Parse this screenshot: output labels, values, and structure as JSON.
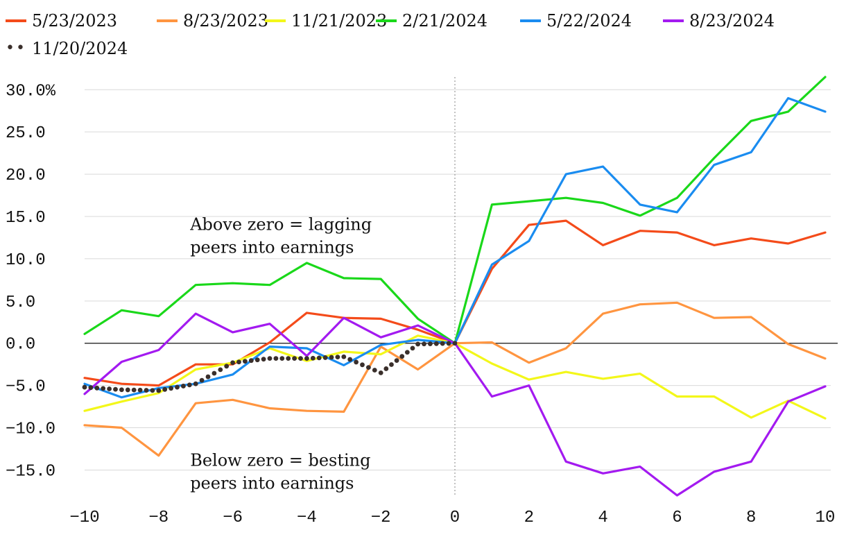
{
  "chart_data": {
    "type": "line",
    "title": "",
    "xlabel": "",
    "ylabel": "",
    "xlim": [
      -10,
      10
    ],
    "ylim": [
      -18,
      31.5
    ],
    "grid": true,
    "legend_position": "top",
    "x_ticks": [
      {
        "value": -10,
        "label": "−10"
      },
      {
        "value": -8,
        "label": "−8"
      },
      {
        "value": -6,
        "label": "−6"
      },
      {
        "value": -4,
        "label": "−4"
      },
      {
        "value": -2,
        "label": "−2"
      },
      {
        "value": 0,
        "label": "0"
      },
      {
        "value": 2,
        "label": "2"
      },
      {
        "value": 4,
        "label": "4"
      },
      {
        "value": 6,
        "label": "6"
      },
      {
        "value": 8,
        "label": "8"
      },
      {
        "value": 10,
        "label": "10"
      }
    ],
    "y_ticks": [
      {
        "value": 30,
        "label": "30.0%"
      },
      {
        "value": 25,
        "label": "25.0"
      },
      {
        "value": 20,
        "label": "20.0"
      },
      {
        "value": 15,
        "label": "15.0"
      },
      {
        "value": 10,
        "label": "10.0"
      },
      {
        "value": 5,
        "label": "5.0"
      },
      {
        "value": 0,
        "label": "0.0"
      },
      {
        "value": -5,
        "label": "−5.0"
      },
      {
        "value": -10,
        "label": "−10.0"
      },
      {
        "value": -15,
        "label": "−15.0"
      }
    ],
    "annotations": [
      {
        "lines": [
          "Above zero = lagging",
          "peers into earnings"
        ],
        "x": -7.15,
        "y": 13.4
      },
      {
        "lines": [
          "Below zero = besting",
          "peers into earnings"
        ],
        "x": -7.15,
        "y": -14.5
      }
    ],
    "x": [
      -10,
      -9,
      -8,
      -7,
      -6,
      -5,
      -4,
      -3,
      -2,
      -1,
      0,
      1,
      2,
      3,
      4,
      5,
      6,
      7,
      8,
      9,
      10
    ],
    "series": [
      {
        "name": "5/23/2023",
        "color": "#f44b1a",
        "style": "solid",
        "values": [
          -4.1,
          -4.8,
          -5.0,
          -2.5,
          -2.5,
          0.1,
          3.6,
          3.0,
          2.9,
          1.6,
          0,
          8.8,
          14.0,
          14.5,
          11.6,
          13.3,
          13.1,
          11.6,
          12.4,
          11.8,
          13.1
        ]
      },
      {
        "name": "8/23/2023",
        "color": "#ff9540",
        "style": "solid",
        "values": [
          -9.7,
          -10.0,
          -13.3,
          -7.1,
          -6.7,
          -7.7,
          -8.0,
          -8.1,
          -0.4,
          -3.1,
          0,
          0.1,
          -2.3,
          -0.6,
          3.5,
          4.6,
          4.8,
          3.0,
          3.1,
          -0.1,
          -1.8
        ]
      },
      {
        "name": "11/21/2023",
        "color": "#f3f71a",
        "style": "solid",
        "values": [
          -8.0,
          -6.9,
          -5.9,
          -3.1,
          -2.3,
          -0.6,
          -2.1,
          -1.0,
          -1.3,
          0.9,
          0,
          -2.4,
          -4.3,
          -3.4,
          -4.2,
          -3.6,
          -6.3,
          -6.3,
          -8.8,
          -6.8,
          -8.9
        ]
      },
      {
        "name": "2/21/2024",
        "color": "#1ad81a",
        "style": "solid",
        "values": [
          1.1,
          3.9,
          3.2,
          6.9,
          7.1,
          6.9,
          9.5,
          7.7,
          7.6,
          2.9,
          0,
          16.4,
          16.8,
          17.2,
          16.6,
          15.1,
          17.2,
          21.9,
          26.3,
          27.4,
          31.5
        ]
      },
      {
        "name": "5/22/2024",
        "color": "#1a8cf0",
        "style": "solid",
        "values": [
          -4.8,
          -6.4,
          -5.3,
          -4.8,
          -3.7,
          -0.4,
          -0.6,
          -2.6,
          -0.2,
          0.4,
          0,
          9.3,
          12.1,
          20.0,
          20.9,
          16.4,
          15.5,
          21.1,
          22.6,
          29.0,
          27.4
        ]
      },
      {
        "name": "8/23/2024",
        "color": "#a31af0",
        "style": "solid",
        "values": [
          -6.0,
          -2.2,
          -0.8,
          3.5,
          1.3,
          2.3,
          -1.5,
          3.0,
          0.7,
          2.1,
          0,
          -6.3,
          -5.0,
          -14.0,
          -15.4,
          -14.6,
          -18.0,
          -15.2,
          -14.0,
          -6.9,
          -5.1
        ]
      },
      {
        "name": "11/20/2024",
        "color": "#3a2f2b",
        "style": "dotted",
        "values": [
          -5.2,
          -5.5,
          -5.6,
          -4.8,
          -2.3,
          -1.8,
          -1.8,
          -1.6,
          -3.5,
          -0.1,
          0,
          null,
          null,
          null,
          null,
          null,
          null,
          null,
          null,
          null,
          null
        ]
      }
    ]
  }
}
